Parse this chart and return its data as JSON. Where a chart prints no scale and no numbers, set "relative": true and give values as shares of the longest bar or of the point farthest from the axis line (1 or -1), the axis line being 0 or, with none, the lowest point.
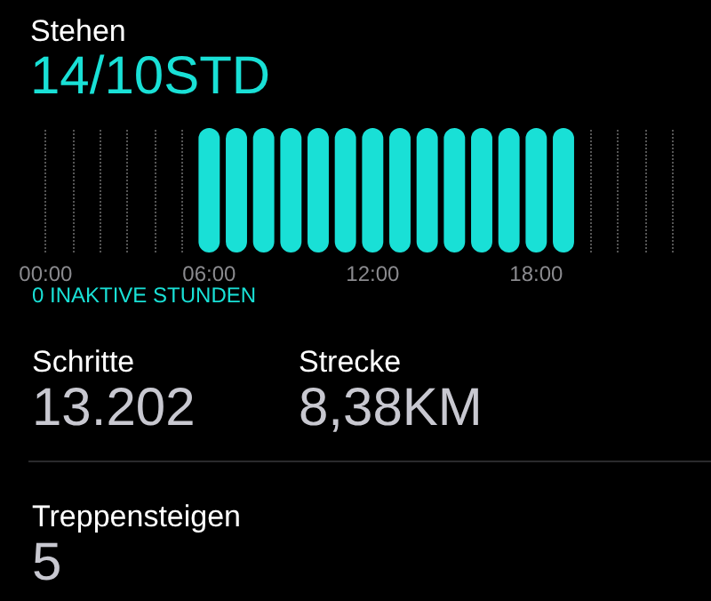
{
  "chart_data": [
    {
      "type": "bar",
      "title": "Stehen",
      "subtitle": "14/10STD",
      "relative": true,
      "color": "#19e0d6",
      "grid": "x",
      "annotations": [
        "0 INAKTIVE STUNDEN"
      ],
      "categories": [
        "00:00",
        null,
        null,
        null,
        null,
        null,
        "06:00",
        null,
        null,
        null,
        null,
        null,
        "12:00",
        null,
        null,
        null,
        null,
        null,
        "18:00",
        null,
        null,
        null,
        null,
        null
      ],
      "values": [
        0,
        0,
        0,
        0,
        0,
        0,
        1,
        1,
        1,
        1,
        1,
        1,
        1,
        1,
        1,
        1,
        1,
        1,
        1,
        1,
        0,
        0,
        0,
        0
      ]
    },
    {
      "type": "other",
      "annotations": [
        "Schritte",
        "13.202",
        "Strecke",
        "8,38KM",
        "Treppensteigen",
        "5"
      ]
    }
  ]
}
